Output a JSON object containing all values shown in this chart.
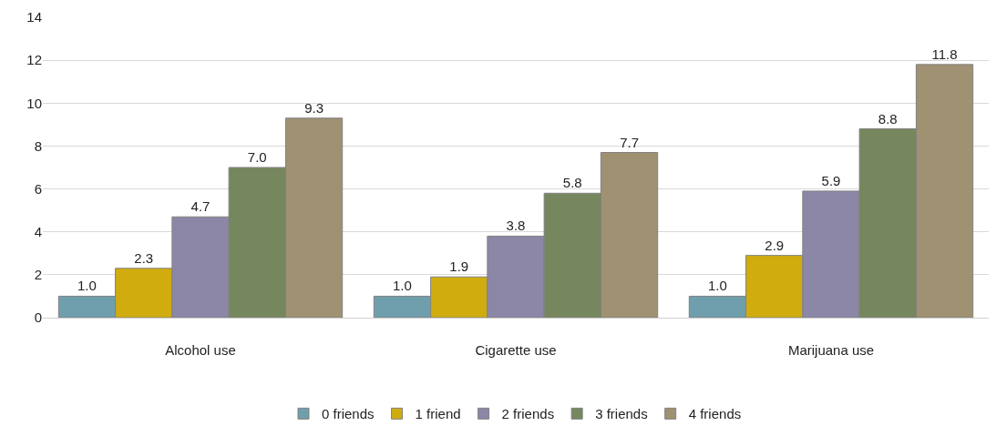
{
  "chart_data": {
    "type": "bar",
    "categories": [
      "Alcohol use",
      "Cigarette use",
      "Marijuana use"
    ],
    "series": [
      {
        "name": "0 friends",
        "color": "#6f9fac",
        "values": [
          1.0,
          1.0,
          1.0
        ],
        "value_labels": [
          "1.0",
          "1.0",
          "1.0"
        ]
      },
      {
        "name": "1 friend",
        "color": "#d1ac0f",
        "values": [
          2.3,
          1.9,
          2.9
        ],
        "value_labels": [
          "2.3",
          "1.9",
          "2.9"
        ]
      },
      {
        "name": "2 friends",
        "color": "#8c87a6",
        "values": [
          4.7,
          3.8,
          5.9
        ],
        "value_labels": [
          "4.7",
          "3.8",
          "5.9"
        ]
      },
      {
        "name": "3 friends",
        "color": "#76875e",
        "values": [
          7.0,
          5.8,
          8.8
        ],
        "value_labels": [
          "7.0",
          "5.8",
          "8.8"
        ]
      },
      {
        "name": "4 friends",
        "color": "#9f9172",
        "values": [
          9.3,
          7.7,
          11.8
        ],
        "value_labels": [
          "9.3",
          "7.7",
          "11.8"
        ]
      }
    ],
    "ylim": [
      0,
      14
    ],
    "yticks": [
      0,
      2,
      4,
      6,
      8,
      10,
      12,
      14
    ],
    "grid": "y",
    "legend": "bottom"
  }
}
